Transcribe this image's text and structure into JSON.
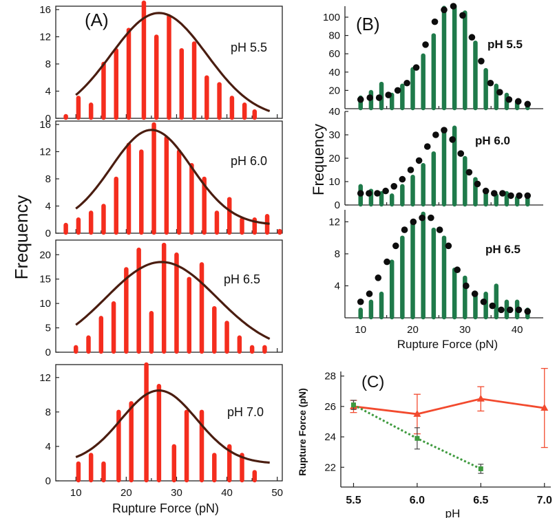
{
  "figure": {
    "colors": {
      "red_bar": "#f42d1e",
      "fit_curve": "#4a1d10",
      "green_bar": "#1f7a4a",
      "dot": "#0d0d0d",
      "red_line": "#f24a2e",
      "green_line": "#3e9a3e",
      "axis": "#222222",
      "text": "#111111"
    }
  },
  "chart_data": [
    {
      "id": "A1",
      "panel_label": "(A)",
      "type": "bar",
      "title": "pH 5.5",
      "ylabel": "Frequency",
      "xlim": [
        6,
        51
      ],
      "ylim": [
        0,
        16.5
      ],
      "yticks": [
        0,
        4,
        8,
        12,
        16
      ],
      "x": [
        8,
        10.5,
        13,
        15.5,
        18,
        20.5,
        23.5,
        26,
        28.5,
        31,
        33.5,
        36,
        38.5,
        41,
        43.5,
        45.5
      ],
      "values": [
        0.3,
        3,
        2,
        8,
        10,
        13,
        17,
        12,
        15,
        10,
        11,
        6,
        5,
        3,
        2,
        1
      ],
      "fit": {
        "amplitude": 15.5,
        "mean": 26.5,
        "sigma": 9.5
      }
    },
    {
      "id": "A2",
      "type": "bar",
      "title": "pH 6.0",
      "xlim": [
        6,
        51
      ],
      "ylim": [
        0,
        16.5
      ],
      "yticks": [
        0,
        4,
        8,
        12,
        16
      ],
      "x": [
        8,
        10.5,
        13,
        15.5,
        18,
        20.5,
        23,
        25.5,
        28,
        30.5,
        33,
        35.5,
        38,
        40.5,
        43,
        45.5,
        48,
        50.5
      ],
      "values": [
        1.2,
        2,
        3,
        4,
        8,
        13,
        12,
        16,
        14,
        12,
        10,
        8,
        3,
        5,
        2,
        2,
        2.5,
        0.3
      ],
      "fit": {
        "amplitude": 14,
        "mean": 25,
        "sigma": 8,
        "offset": 1.2
      }
    },
    {
      "id": "A3",
      "type": "bar",
      "title": "pH 6.5",
      "xlim": [
        6,
        51
      ],
      "ylim": [
        0,
        23
      ],
      "yticks": [
        0,
        5,
        10,
        15,
        20
      ],
      "x": [
        10,
        12.5,
        15,
        17.5,
        20,
        22.5,
        25,
        27.5,
        30,
        32.5,
        35,
        37.5,
        40,
        42.5,
        45,
        47.5
      ],
      "values": [
        1,
        3,
        7,
        10,
        17,
        21,
        8,
        22,
        20,
        15,
        18,
        9,
        6,
        3,
        1,
        1
      ],
      "fit": {
        "amplitude": 18.5,
        "mean": 27,
        "sigma": 11
      }
    },
    {
      "id": "A4",
      "type": "bar",
      "title": "pH 7.0",
      "xlabel": "Rupture Force (pN)",
      "xlim": [
        6,
        51
      ],
      "ylim": [
        0,
        13.5
      ],
      "yticks": [
        0,
        4,
        8,
        12
      ],
      "xticks": [
        10,
        20,
        30,
        40,
        50
      ],
      "x": [
        10.5,
        13,
        15.5,
        18.5,
        21,
        24,
        26.5,
        29.5,
        32,
        35,
        37.5,
        40.5,
        43,
        45.5
      ],
      "values": [
        2,
        3,
        2,
        8,
        9,
        13.5,
        11,
        4,
        8,
        8,
        3,
        4,
        3,
        1
      ],
      "fit": {
        "amplitude": 8.5,
        "mean": 26.5,
        "sigma": 7.5,
        "offset": 2
      }
    },
    {
      "id": "B1",
      "panel_label": "(B)",
      "type": "bar",
      "title": "pH 5.5",
      "ylabel": "Frequency",
      "xlim": [
        7,
        45
      ],
      "ylim": [
        0,
        112
      ],
      "yticks": [
        20,
        40,
        60,
        80,
        100
      ],
      "x": [
        10,
        12,
        14,
        16,
        18,
        20,
        22,
        24,
        26,
        28,
        30,
        32,
        34,
        36,
        38,
        40,
        42
      ],
      "values": [
        12,
        18,
        27,
        15,
        25,
        43,
        58,
        80,
        110,
        112,
        105,
        72,
        42,
        25,
        15,
        8,
        5
      ],
      "dots": [
        10,
        12,
        12,
        15,
        20,
        28,
        45,
        70,
        95,
        108,
        112,
        102,
        78,
        52,
        28,
        18,
        10,
        8,
        5
      ]
    },
    {
      "id": "B2",
      "type": "bar",
      "title": "pH 6.0",
      "xlim": [
        7,
        45
      ],
      "ylim": [
        0,
        40
      ],
      "yticks": [
        0,
        10,
        20,
        30,
        40
      ],
      "x": [
        10,
        12,
        14,
        16,
        18,
        20,
        22,
        24,
        26,
        28,
        30,
        32,
        34,
        36,
        38,
        40,
        42
      ],
      "values": [
        8,
        6,
        5,
        4,
        8,
        12,
        17,
        22,
        31,
        33,
        20,
        11,
        6,
        4,
        5,
        3,
        3
      ],
      "dots": [
        5,
        5,
        5,
        6,
        8,
        11,
        15,
        19,
        25,
        30,
        32,
        28,
        22,
        14,
        9,
        6,
        5,
        5,
        4,
        4,
        4
      ]
    },
    {
      "id": "B3",
      "type": "bar",
      "title": "pH 6.5",
      "xlabel": "Rupture Force (pN)",
      "xlim": [
        7,
        45
      ],
      "ylim": [
        0,
        13.5
      ],
      "yticks": [
        4,
        8,
        12
      ],
      "xticks": [
        10,
        20,
        30,
        40
      ],
      "x": [
        10,
        12,
        14,
        16,
        18,
        20,
        22,
        24,
        26,
        28,
        30,
        32,
        34,
        36,
        38,
        40,
        42
      ],
      "values": [
        1,
        2,
        3,
        7,
        10,
        12,
        13,
        11,
        10,
        6,
        5,
        3,
        3,
        4,
        2,
        2,
        1
      ],
      "dots": [
        2,
        3,
        5,
        7,
        9,
        11,
        12,
        12.5,
        12.5,
        11,
        9,
        6,
        4,
        3,
        2,
        1.5,
        1,
        1,
        1,
        0.8
      ]
    },
    {
      "id": "C",
      "panel_label": "(C)",
      "type": "line",
      "xlabel": "pH",
      "ylabel": "Rupture Force (pN)",
      "xlim": [
        5.4,
        7.05
      ],
      "ylim": [
        20.7,
        28.3
      ],
      "xticks": [
        5.5,
        6.0,
        6.5,
        7.0
      ],
      "yticks": [
        22,
        24,
        26,
        28
      ],
      "series": [
        {
          "x": [
            5.5,
            6.0,
            6.5,
            7.0
          ],
          "y": [
            26.0,
            25.5,
            26.5,
            25.9
          ],
          "err": [
            0.4,
            1.3,
            0.8,
            2.6
          ]
        },
        {
          "x": [
            5.5,
            6.0,
            6.5
          ],
          "y": [
            26.1,
            23.9,
            21.9
          ],
          "err": [
            0.3,
            0.7,
            0.3
          ]
        }
      ]
    }
  ]
}
